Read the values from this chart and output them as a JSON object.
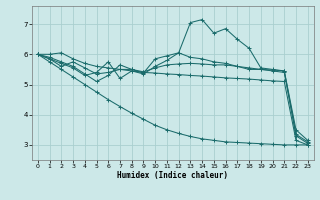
{
  "bg_color": "#cce8e8",
  "grid_color": "#aacfcf",
  "line_color": "#1a6b6b",
  "xlabel": "Humidex (Indice chaleur)",
  "xlim": [
    -0.5,
    23.5
  ],
  "ylim": [
    2.5,
    7.6
  ],
  "yticks": [
    3,
    4,
    5,
    6,
    7
  ],
  "xticks": [
    0,
    1,
    2,
    3,
    4,
    5,
    6,
    7,
    8,
    9,
    10,
    11,
    12,
    13,
    14,
    15,
    16,
    17,
    18,
    19,
    20,
    21,
    22,
    23
  ],
  "line1_y": [
    6.0,
    6.0,
    6.05,
    5.85,
    5.7,
    5.6,
    5.55,
    5.5,
    5.45,
    5.4,
    5.38,
    5.35,
    5.33,
    5.3,
    5.28,
    5.25,
    5.22,
    5.2,
    5.18,
    5.15,
    5.12,
    5.1,
    3.15,
    3.0
  ],
  "line2_y": [
    6.0,
    5.85,
    5.6,
    5.75,
    5.55,
    5.35,
    5.4,
    5.5,
    5.5,
    5.42,
    5.55,
    5.65,
    5.68,
    5.7,
    5.68,
    5.65,
    5.65,
    5.6,
    5.55,
    5.5,
    5.48,
    5.45,
    3.35,
    3.1
  ],
  "line3_y": [
    6.0,
    5.9,
    5.75,
    5.6,
    5.35,
    5.1,
    5.3,
    5.65,
    5.5,
    5.38,
    5.85,
    5.95,
    6.05,
    7.05,
    7.15,
    6.7,
    6.85,
    6.5,
    6.2,
    5.55,
    5.5,
    5.45,
    3.5,
    3.15
  ],
  "line4_y": [
    6.0,
    5.85,
    5.7,
    5.55,
    5.3,
    5.4,
    5.75,
    5.2,
    5.45,
    5.35,
    5.6,
    5.8,
    6.05,
    5.9,
    5.85,
    5.75,
    5.7,
    5.6,
    5.5,
    5.5,
    5.45,
    5.4,
    3.3,
    3.05
  ],
  "line5_y": [
    6.0,
    5.75,
    5.5,
    5.25,
    5.0,
    4.75,
    4.5,
    4.27,
    4.05,
    3.85,
    3.65,
    3.5,
    3.38,
    3.28,
    3.2,
    3.15,
    3.1,
    3.08,
    3.06,
    3.04,
    3.02,
    3.0,
    3.0,
    3.0
  ]
}
